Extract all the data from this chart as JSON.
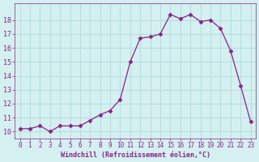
{
  "x": [
    0,
    1,
    2,
    3,
    4,
    5,
    6,
    7,
    8,
    9,
    10,
    11,
    12,
    13,
    14,
    15,
    16,
    17,
    18,
    19,
    20,
    21,
    22,
    23
  ],
  "y": [
    10.2,
    10.2,
    10.4,
    10.0,
    10.4,
    10.4,
    10.4,
    10.8,
    11.2,
    11.5,
    12.3,
    15.0,
    16.7,
    16.8,
    17.0,
    18.4,
    18.1,
    18.4,
    17.9,
    18.0,
    17.4,
    15.8,
    13.3,
    10.7
  ],
  "line_color": "#8b2288",
  "marker": "D",
  "marker_size": 2.5,
  "bg_color": "#d4f0f0",
  "grid_color": "#b8dede",
  "xlabel": "Windchill (Refroidissement éolien,°C)",
  "xlabel_color": "#8b2288",
  "tick_color": "#8b2288",
  "xlim": [
    -0.5,
    23.5
  ],
  "ylim": [
    9.5,
    19.2
  ],
  "yticks": [
    10,
    11,
    12,
    13,
    14,
    15,
    16,
    17,
    18
  ],
  "xticks": [
    0,
    1,
    2,
    3,
    4,
    5,
    6,
    7,
    8,
    9,
    10,
    11,
    12,
    13,
    14,
    15,
    16,
    17,
    18,
    19,
    20,
    21,
    22,
    23
  ]
}
